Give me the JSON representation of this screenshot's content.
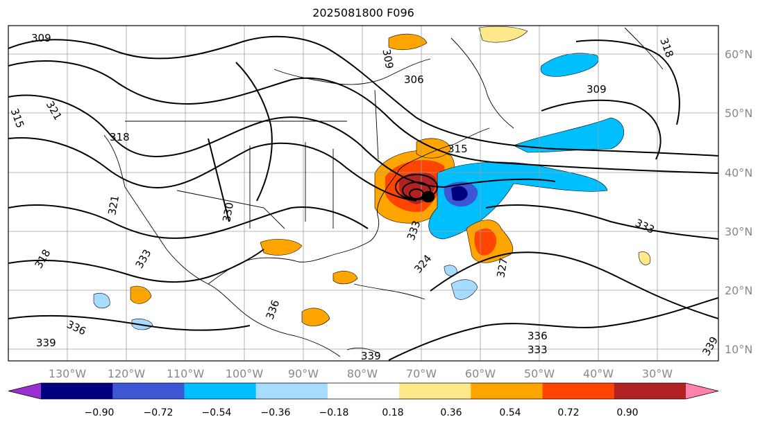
{
  "title": "2025081800 F096",
  "map": {
    "lon_labels": [
      "130°W",
      "120°W",
      "110°W",
      "100°W",
      "90°W",
      "80°W",
      "70°W",
      "60°W",
      "50°W",
      "40°W",
      "30°W"
    ],
    "lat_labels": [
      "60°N",
      "50°N",
      "40°N",
      "30°N",
      "20°N",
      "10°N"
    ],
    "contour_labels": [
      "309",
      "315",
      "321",
      "318",
      "318",
      "333",
      "336",
      "339",
      "306",
      "309",
      "318",
      "321",
      "333",
      "336",
      "339",
      "330",
      "324",
      "327",
      "336",
      "333",
      "339",
      "309",
      "315",
      "333"
    ]
  },
  "colorbar": {
    "ticks": [
      "−0.90",
      "−0.72",
      "−0.54",
      "−0.36",
      "−0.18",
      "0.18",
      "0.36",
      "0.54",
      "0.72",
      "0.90"
    ],
    "colors": [
      "#9b30d0",
      "#00007f",
      "#3b57d4",
      "#00bfff",
      "#a6dcff",
      "#ffffff",
      "#ffe88a",
      "#ffa500",
      "#ff4500",
      "#b22222",
      "#ff82ab"
    ]
  }
}
